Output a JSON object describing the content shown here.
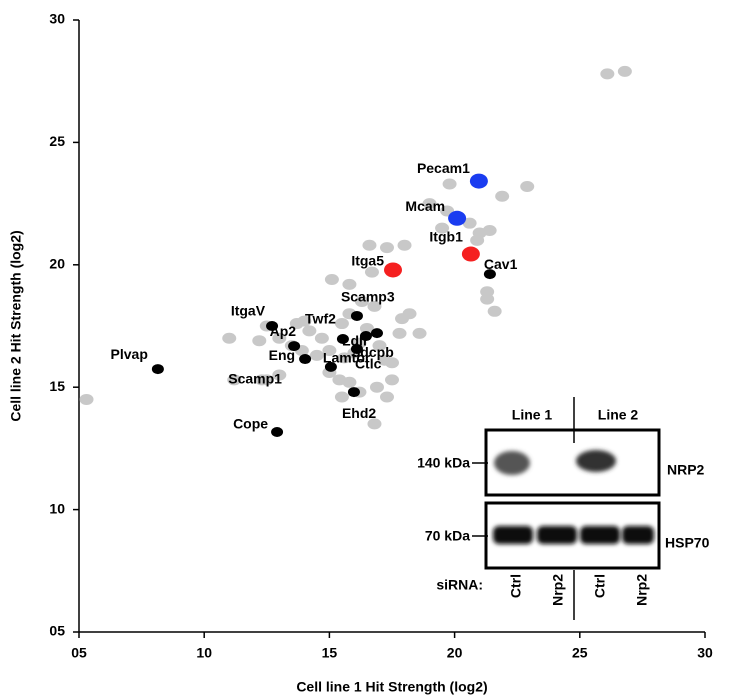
{
  "chart_data": {
    "type": "scatter",
    "xlabel": "Cell line 1 Hit Strength (log2)",
    "ylabel": "Cell line 2 Hit Strength (log2)",
    "xlim": [
      5,
      30
    ],
    "ylim": [
      5,
      30
    ],
    "xticks": [
      {
        "value": 5,
        "label": "05"
      },
      10,
      15,
      20,
      25,
      30
    ],
    "yticks": [
      {
        "value": 5,
        "label": "05"
      },
      10,
      15,
      20,
      25,
      30
    ],
    "series": [
      {
        "color": "#c8c8c8",
        "x": [
          5.3,
          11,
          12.2,
          12.5,
          13,
          12.5,
          13.5,
          13.7,
          13.9,
          14.2,
          14.5,
          14.7,
          15,
          15,
          15.4,
          15.5,
          15.8,
          15.6,
          16,
          16.2,
          16.5,
          15.5,
          15.8,
          15.8,
          15.1,
          16.3,
          16.8,
          17,
          17.2,
          17.5,
          17.3,
          16.9,
          16.8,
          17.8,
          17.9,
          18.2,
          18.6,
          16.7,
          16.6,
          17.3,
          18,
          19.5,
          19.7,
          19,
          19.8,
          20.6,
          20.9,
          21,
          21.4,
          21.3,
          21.3,
          21.6,
          21.9,
          22.9,
          26.1,
          26.8,
          14,
          13,
          16.2,
          17.5,
          12.3
        ],
        "values": [
          14.5,
          17,
          16.9,
          17.5,
          15.5,
          15.3,
          16.7,
          17.6,
          16.5,
          17.3,
          16.3,
          17,
          16.5,
          15.6,
          15.3,
          14.6,
          15.2,
          16.2,
          16.4,
          16.8,
          17.4,
          17.6,
          18,
          19.2,
          19.4,
          18.5,
          18.3,
          16.7,
          16.1,
          15.3,
          14.6,
          15,
          13.5,
          17.2,
          17.8,
          18,
          17.2,
          19.7,
          20.8,
          20.7,
          20.8,
          21.5,
          22.2,
          22.5,
          23.3,
          21.7,
          21,
          21.3,
          21.4,
          18.9,
          18.6,
          18.1,
          22.8,
          23.2,
          27.8,
          27.9,
          17.7,
          17,
          14.8,
          16,
          15.3
        ]
      },
      {
        "color": "#000000",
        "x": [
          8.15,
          12.71,
          15.54,
          16.1,
          16.46,
          16.9,
          13.59,
          14.03,
          15.06,
          16.1,
          15.98,
          12.91,
          21.41
        ],
        "values": [
          15.74,
          17.5,
          16.97,
          17.91,
          17.09,
          17.21,
          16.68,
          16.15,
          15.83,
          16.56,
          14.8,
          13.17,
          19.62
        ],
        "labels": [
          "Plvap",
          "ItgaV",
          "Twf2",
          "Scamp3",
          "Ldlr",
          "Sdcpb",
          "Ap2",
          "Eng",
          "Lamtor",
          "Ctlc",
          "Ehd2",
          "Cope",
          "Cav1"
        ]
      },
      {
        "color": "#1a3cf0",
        "x": [
          20.97,
          20.1
        ],
        "values": [
          23.42,
          21.9
        ],
        "labels": [
          "Pecam1",
          "Mcam"
        ]
      },
      {
        "color": "#f52020",
        "x": [
          20.65,
          17.54
        ],
        "values": [
          20.44,
          19.79
        ],
        "labels": [
          "Itgb1",
          "Itga5"
        ]
      },
      {
        "color": "#c8c8c8",
        "x": [
          11.2
        ],
        "values": [
          15.3
        ],
        "labels": [
          "Scamp1"
        ]
      }
    ]
  },
  "inset": {
    "line1": "Line 1",
    "line2": "Line 2",
    "marker1": "140 kDa",
    "marker2": "70 kDa",
    "protein1": "NRP2",
    "protein2": "HSP70",
    "sirna": "siRNA:",
    "lanes": [
      "Ctrl",
      "Nrp2",
      "Ctrl",
      "Nrp2"
    ]
  }
}
